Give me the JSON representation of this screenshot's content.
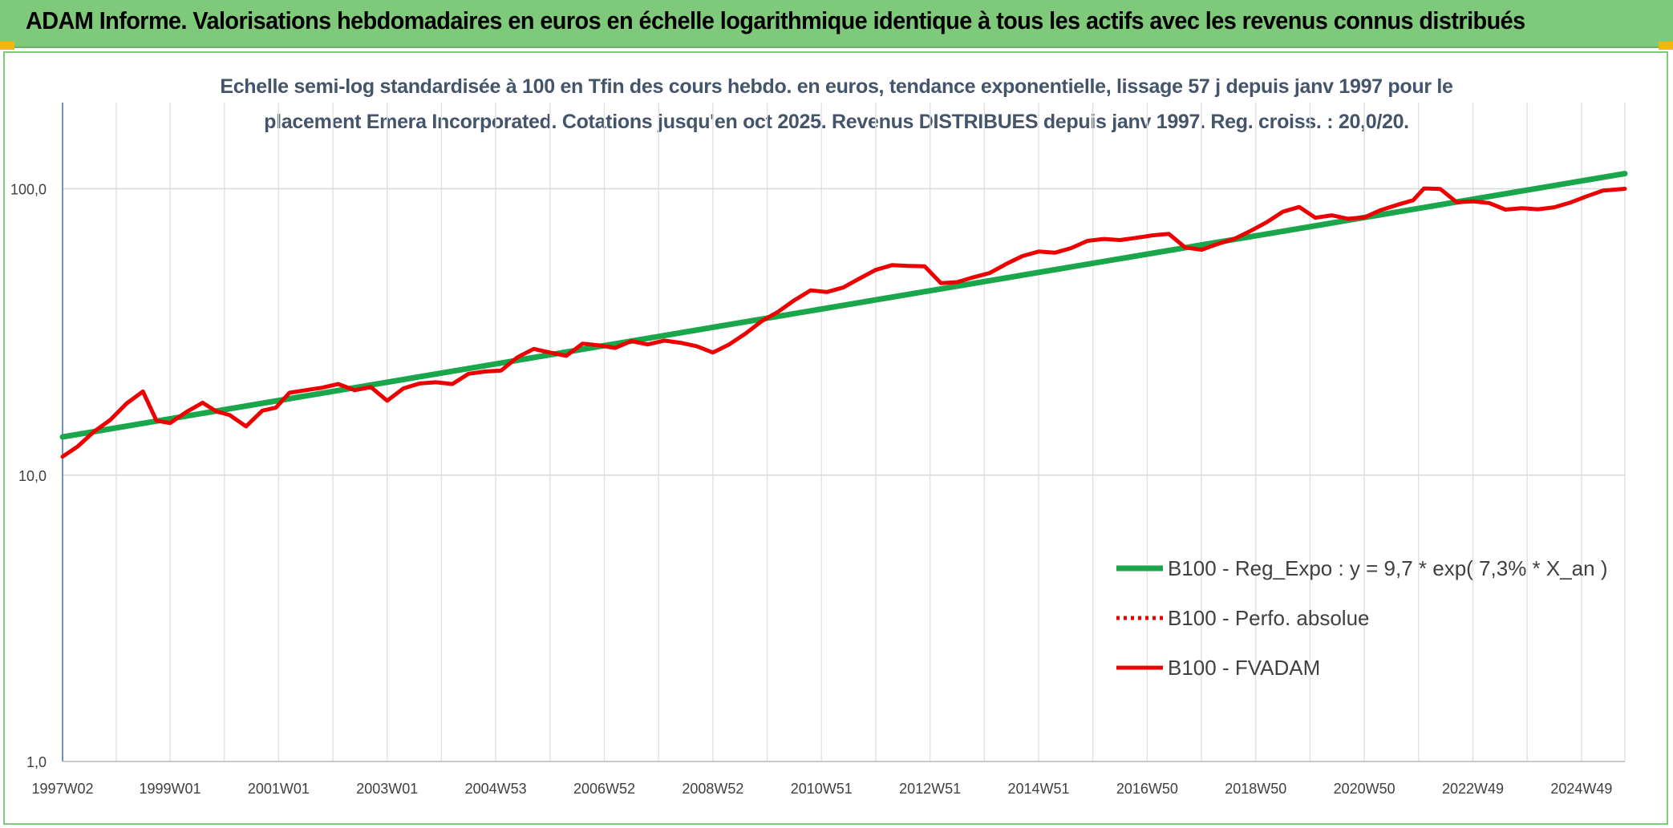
{
  "banner": {
    "title": "ADAM Informe. Valorisations hebdomadaires en euros en échelle logarithmique identique à tous les actifs avec les revenus connus distribués"
  },
  "colors": {
    "banner_bg": "#7fc97a",
    "regression": "#1aa64a",
    "series": "#ee0000",
    "corner": "#f2b70d"
  },
  "chart_data": {
    "type": "line",
    "title_lines": [
      "Echelle semi-log standardisée à 100 en Tfin des cours hebdo. en euros, tendance exponentielle, lissage 57 j depuis janv 1997 pour le",
      "placement Emera Incorporated. Cotations jusqu'en oct 2025. Revenus DISTRIBUES depuis janv 1997. Reg. croiss. : 20,0/20."
    ],
    "y_scale": "log",
    "ylim": [
      1,
      200
    ],
    "y_ticks": [
      {
        "value": 1,
        "label": "1,0"
      },
      {
        "value": 10,
        "label": "10,0"
      },
      {
        "value": 100,
        "label": "100,0"
      }
    ],
    "xlim": [
      1997.02,
      2025.8
    ],
    "x_ticks": [
      {
        "value": 1997.02,
        "label": "1997W02"
      },
      {
        "value": 1999.0,
        "label": "1999W01"
      },
      {
        "value": 2001.0,
        "label": "2001W01"
      },
      {
        "value": 2003.0,
        "label": "2003W01"
      },
      {
        "value": 2005.0,
        "label": "2004W53"
      },
      {
        "value": 2007.0,
        "label": "2006W52"
      },
      {
        "value": 2009.0,
        "label": "2008W52"
      },
      {
        "value": 2011.0,
        "label": "2010W51"
      },
      {
        "value": 2013.0,
        "label": "2012W51"
      },
      {
        "value": 2015.0,
        "label": "2014W51"
      },
      {
        "value": 2017.0,
        "label": "2016W50"
      },
      {
        "value": 2019.0,
        "label": "2018W50"
      },
      {
        "value": 2021.0,
        "label": "2020W50"
      },
      {
        "value": 2023.0,
        "label": "2022W49"
      },
      {
        "value": 2025.0,
        "label": "2024W49"
      }
    ],
    "grid": "vertical and horizontal",
    "legend_position": "bottom-right",
    "series": [
      {
        "name": "B100 - Reg_Expo : y = 9,7 * exp( 7,3% *  X_an )",
        "style": "solid-green",
        "x": [
          1997.02,
          2025.8
        ],
        "values": [
          13.6,
          113
        ]
      },
      {
        "name": "B100 - Perfo. absolue",
        "style": "dotted-red",
        "x": [],
        "values": []
      },
      {
        "name": "B100 - FVADAM",
        "style": "solid-red",
        "x": [
          1997.02,
          1997.3,
          1997.6,
          1997.9,
          1998.2,
          1998.5,
          1998.75,
          1999.0,
          1999.3,
          1999.6,
          1999.85,
          2000.1,
          2000.4,
          2000.7,
          2000.95,
          2001.2,
          2001.5,
          2001.8,
          2002.1,
          2002.4,
          2002.7,
          2003.0,
          2003.3,
          2003.6,
          2003.9,
          2004.2,
          2004.5,
          2004.8,
          2005.1,
          2005.4,
          2005.7,
          2006.0,
          2006.3,
          2006.6,
          2006.9,
          2007.2,
          2007.5,
          2007.8,
          2008.1,
          2008.4,
          2008.7,
          2009.0,
          2009.3,
          2009.6,
          2009.9,
          2010.2,
          2010.5,
          2010.8,
          2011.1,
          2011.4,
          2011.7,
          2012.0,
          2012.3,
          2012.6,
          2012.9,
          2013.2,
          2013.5,
          2013.8,
          2014.1,
          2014.4,
          2014.7,
          2015.0,
          2015.3,
          2015.6,
          2015.9,
          2016.2,
          2016.5,
          2016.8,
          2017.1,
          2017.4,
          2017.7,
          2018.0,
          2018.3,
          2018.6,
          2018.9,
          2019.2,
          2019.5,
          2019.8,
          2020.1,
          2020.4,
          2020.7,
          2021.0,
          2021.3,
          2021.6,
          2021.9,
          2022.1,
          2022.4,
          2022.7,
          2023.0,
          2023.3,
          2023.6,
          2023.9,
          2024.2,
          2024.5,
          2024.8,
          2025.1,
          2025.4,
          2025.8
        ],
        "values": [
          11.6,
          12.6,
          14.2,
          15.6,
          17.8,
          19.6,
          15.5,
          15.2,
          16.6,
          17.9,
          16.7,
          16.2,
          14.8,
          16.8,
          17.2,
          19.4,
          19.8,
          20.2,
          20.8,
          19.8,
          20.3,
          18.2,
          20.1,
          20.9,
          21.1,
          20.8,
          22.6,
          23.0,
          23.2,
          25.8,
          27.6,
          26.8,
          26.1,
          28.8,
          28.4,
          27.8,
          29.4,
          28.6,
          29.5,
          29.0,
          28.2,
          26.8,
          28.6,
          31.2,
          34.5,
          37.2,
          40.8,
          44.2,
          43.6,
          45.2,
          48.6,
          52.1,
          54.1,
          53.8,
          53.6,
          46.8,
          47.2,
          49.1,
          50.8,
          54.6,
          58.2,
          60.4,
          59.8,
          62.1,
          65.8,
          66.8,
          66.2,
          67.4,
          68.8,
          69.6,
          62.4,
          61.2,
          64.2,
          66.8,
          71.2,
          76.4,
          83.2,
          86.4,
          79.2,
          80.8,
          78.6,
          79.4,
          84.2,
          87.8,
          91.2,
          100.3,
          99.8,
          89.8,
          90.4,
          89.2,
          84.6,
          85.6,
          84.8,
          86.2,
          89.6,
          94.2,
          98.6,
          100.0
        ]
      }
    ]
  }
}
